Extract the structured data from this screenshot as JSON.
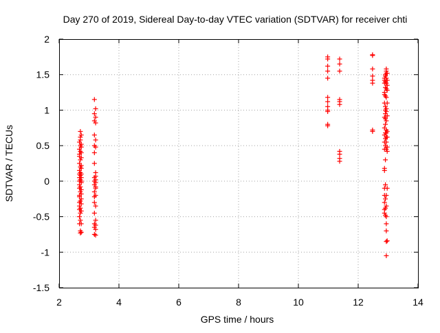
{
  "chart_data": {
    "type": "scatter",
    "title": "Day 270 of 2019, Sidereal Day-to-day VTEC variation (SDTVAR) for receiver chti",
    "xlabel": "GPS time / hours",
    "ylabel": "SDTVAR / TECUs",
    "xlim": [
      2,
      14
    ],
    "ylim": [
      -1.5,
      2
    ],
    "xticks": [
      2,
      4,
      6,
      8,
      10,
      12,
      14
    ],
    "yticks": [
      -1.5,
      -1,
      -0.5,
      0,
      0.5,
      1,
      1.5,
      2
    ],
    "grid": true,
    "legend": "none",
    "marker": "+",
    "color": "#ff0000",
    "series": [
      {
        "x": [
          2.68,
          2.68,
          2.68,
          2.68,
          2.68,
          2.68,
          2.68,
          2.68,
          2.68,
          2.68,
          2.68,
          2.68,
          2.68,
          2.68,
          2.68,
          2.68,
          2.68,
          2.68,
          2.71,
          2.71,
          2.71,
          2.71,
          2.71,
          2.71,
          2.71,
          2.71,
          2.71,
          2.71,
          2.71,
          2.71,
          2.71,
          2.71,
          2.71,
          2.71,
          2.71,
          2.71,
          2.74,
          2.74,
          2.74,
          2.74,
          2.74,
          2.74,
          2.74,
          2.74,
          2.74,
          2.74,
          2.74,
          2.74,
          2.74,
          2.74,
          2.74,
          2.74,
          2.74,
          2.74,
          3.18,
          3.18,
          3.18,
          3.18,
          3.18,
          3.18,
          3.18,
          3.18,
          3.18,
          3.18,
          3.18,
          3.18,
          3.18,
          3.18,
          3.18,
          3.18,
          3.18,
          3.22,
          3.22,
          3.22,
          3.22,
          3.22,
          3.22,
          3.22,
          3.22,
          3.22,
          3.22,
          3.22,
          3.22,
          3.22,
          3.22,
          3.22,
          3.22,
          3.22,
          10.98,
          10.98,
          10.98,
          10.98,
          10.98,
          10.98,
          10.98,
          10.98,
          10.98,
          10.98,
          10.98,
          10.98,
          11.38,
          11.38,
          11.38,
          11.38,
          11.38,
          11.38,
          11.38,
          11.38,
          11.38,
          11.38,
          12.48,
          12.48,
          12.48,
          12.48,
          12.48,
          12.48,
          12.48,
          12.48,
          12.88,
          12.88,
          12.88,
          12.88,
          12.88,
          12.88,
          12.88,
          12.88,
          12.88,
          12.88,
          12.88,
          12.88,
          12.88,
          12.88,
          12.88,
          12.88,
          12.88,
          12.88,
          12.91,
          12.91,
          12.91,
          12.91,
          12.91,
          12.91,
          12.91,
          12.91,
          12.91,
          12.91,
          12.91,
          12.91,
          12.91,
          12.91,
          12.91,
          12.91,
          12.91,
          12.91,
          12.94,
          12.94,
          12.94,
          12.94,
          12.94,
          12.94,
          12.94,
          12.94,
          12.94,
          12.94,
          12.94,
          12.94,
          12.94,
          12.94,
          12.94,
          12.94,
          12.94,
          12.94,
          12.94,
          12.94,
          12.94,
          12.94,
          12.97,
          12.97,
          12.97,
          12.97,
          12.97,
          12.97,
          12.97,
          12.97,
          12.97,
          12.97,
          12.97,
          12.97
        ],
        "y": [
          0.35,
          0.25,
          0.15,
          0.1,
          0.05,
          0.0,
          -0.05,
          -0.1,
          -0.2,
          -0.3,
          -0.4,
          -0.5,
          -0.6,
          0.45,
          0.55,
          0.38,
          -0.22,
          -0.35,
          0.7,
          0.62,
          0.58,
          0.5,
          0.42,
          0.3,
          0.2,
          0.12,
          0.02,
          -0.08,
          -0.15,
          -0.28,
          -0.38,
          -0.45,
          -0.55,
          -0.7,
          -0.73,
          0.08,
          0.52,
          0.48,
          0.4,
          0.18,
          0.1,
          0.0,
          -0.12,
          -0.25,
          -0.42,
          -0.6,
          -0.72,
          0.65,
          0.22,
          -0.02,
          -0.32,
          0.33,
          -0.18,
          0.05,
          1.15,
          0.95,
          0.85,
          0.65,
          0.5,
          0.4,
          0.25,
          0.05,
          -0.05,
          -0.15,
          -0.3,
          -0.45,
          -0.6,
          -0.65,
          -0.75,
          0.0,
          -0.22,
          1.02,
          0.9,
          0.82,
          0.58,
          0.48,
          0.02,
          -0.02,
          -0.1,
          -0.2,
          -0.35,
          -0.55,
          -0.62,
          -0.68,
          -0.76,
          0.07,
          -0.08,
          0.12,
          1.75,
          1.72,
          1.62,
          1.55,
          1.45,
          1.18,
          1.12,
          1.0,
          0.98,
          0.8,
          0.78,
          1.05,
          1.72,
          1.65,
          1.55,
          1.15,
          1.12,
          1.08,
          0.42,
          0.38,
          0.32,
          0.28,
          1.78,
          1.77,
          1.58,
          1.48,
          1.42,
          1.38,
          0.72,
          0.7,
          1.45,
          1.42,
          1.38,
          1.25,
          1.1,
          0.9,
          0.75,
          0.55,
          0.45,
          0.18,
          0.15,
          -0.1,
          -0.2,
          -0.3,
          -0.4,
          -0.45,
          0.65,
          1.22,
          1.5,
          1.48,
          1.4,
          1.32,
          1.2,
          1.0,
          0.95,
          0.8,
          0.68,
          0.6,
          0.5,
          0.3,
          -0.05,
          -0.25,
          -0.38,
          -0.48,
          1.05,
          0.88,
          1.58,
          1.55,
          1.52,
          1.45,
          1.38,
          1.3,
          1.18,
          1.02,
          0.98,
          0.85,
          0.72,
          0.62,
          0.55,
          0.45,
          -0.2,
          -0.35,
          -0.5,
          -0.6,
          -0.7,
          -0.85,
          -1.05,
          0.68,
          1.52,
          1.42,
          1.35,
          1.28,
          1.1,
          0.92,
          0.7,
          0.62,
          0.48,
          0.42,
          -0.1,
          -0.84
        ]
      }
    ]
  }
}
